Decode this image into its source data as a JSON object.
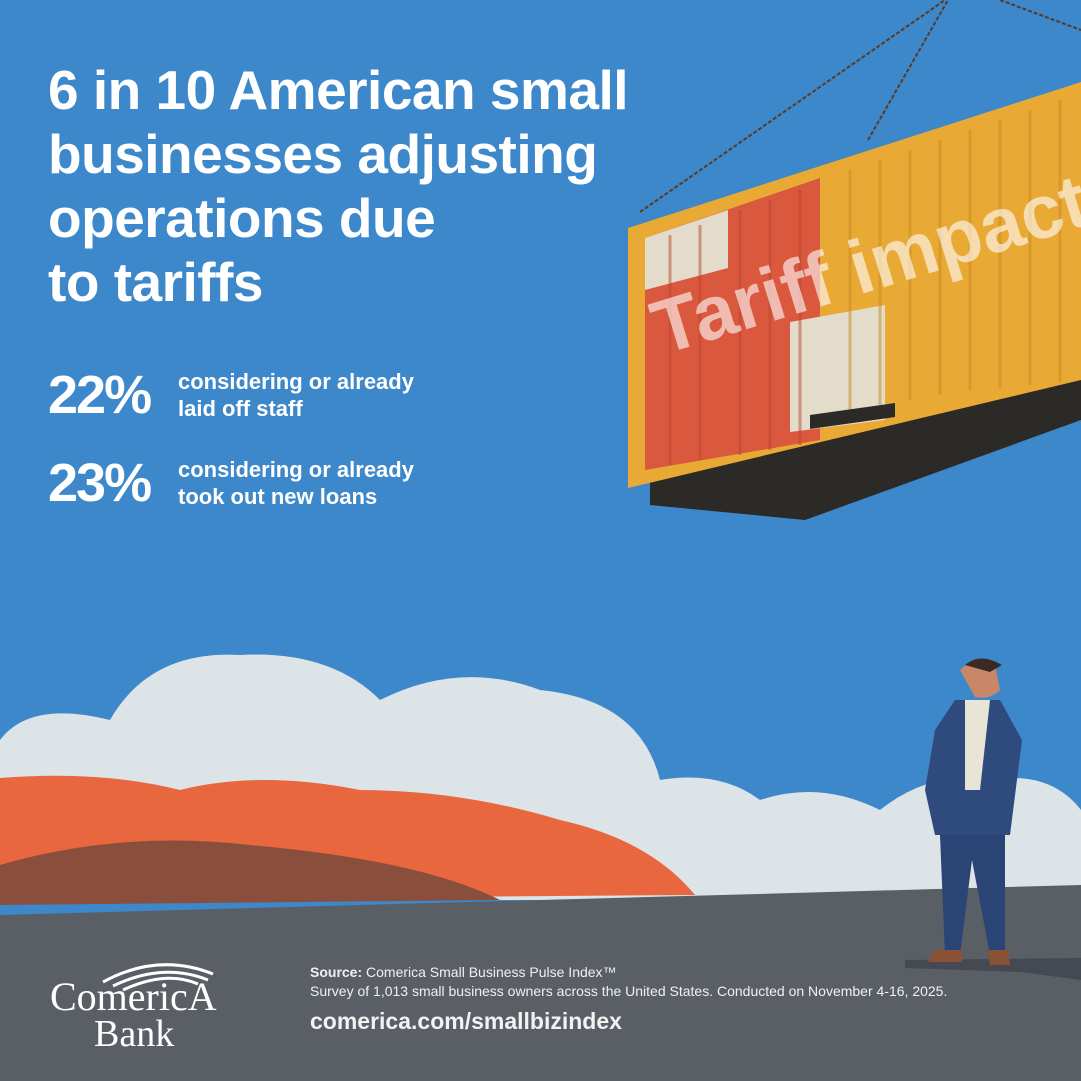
{
  "headline": [
    "6 in 10 American small",
    "businesses adjusting",
    "operations due",
    "to tariffs"
  ],
  "stats": [
    {
      "percent": "22%",
      "lines": [
        "considering or already",
        "laid off staff"
      ]
    },
    {
      "percent": "23%",
      "lines": [
        "considering or already",
        "took out new loans"
      ]
    }
  ],
  "illustration": {
    "container_text": "Tariff impact"
  },
  "footer": {
    "source_label": "Source:",
    "source_name": "Comerica Small Business Pulse Index™",
    "survey_note": "Survey of 1,013 small business owners across the United States. Conducted on November 4-16, 2025.",
    "url": "comerica.com/smallbizindex"
  },
  "logo": {
    "line1": "ComericA",
    "line2": "Bank"
  },
  "colors": {
    "sky": "#3d87cb",
    "cloud": "#dce4e7",
    "hill": "#e8673f",
    "hill_dark": "#8a4f3c",
    "ground": "#5a5f66",
    "container": "#e9a935",
    "container_red": "#d9583e"
  }
}
